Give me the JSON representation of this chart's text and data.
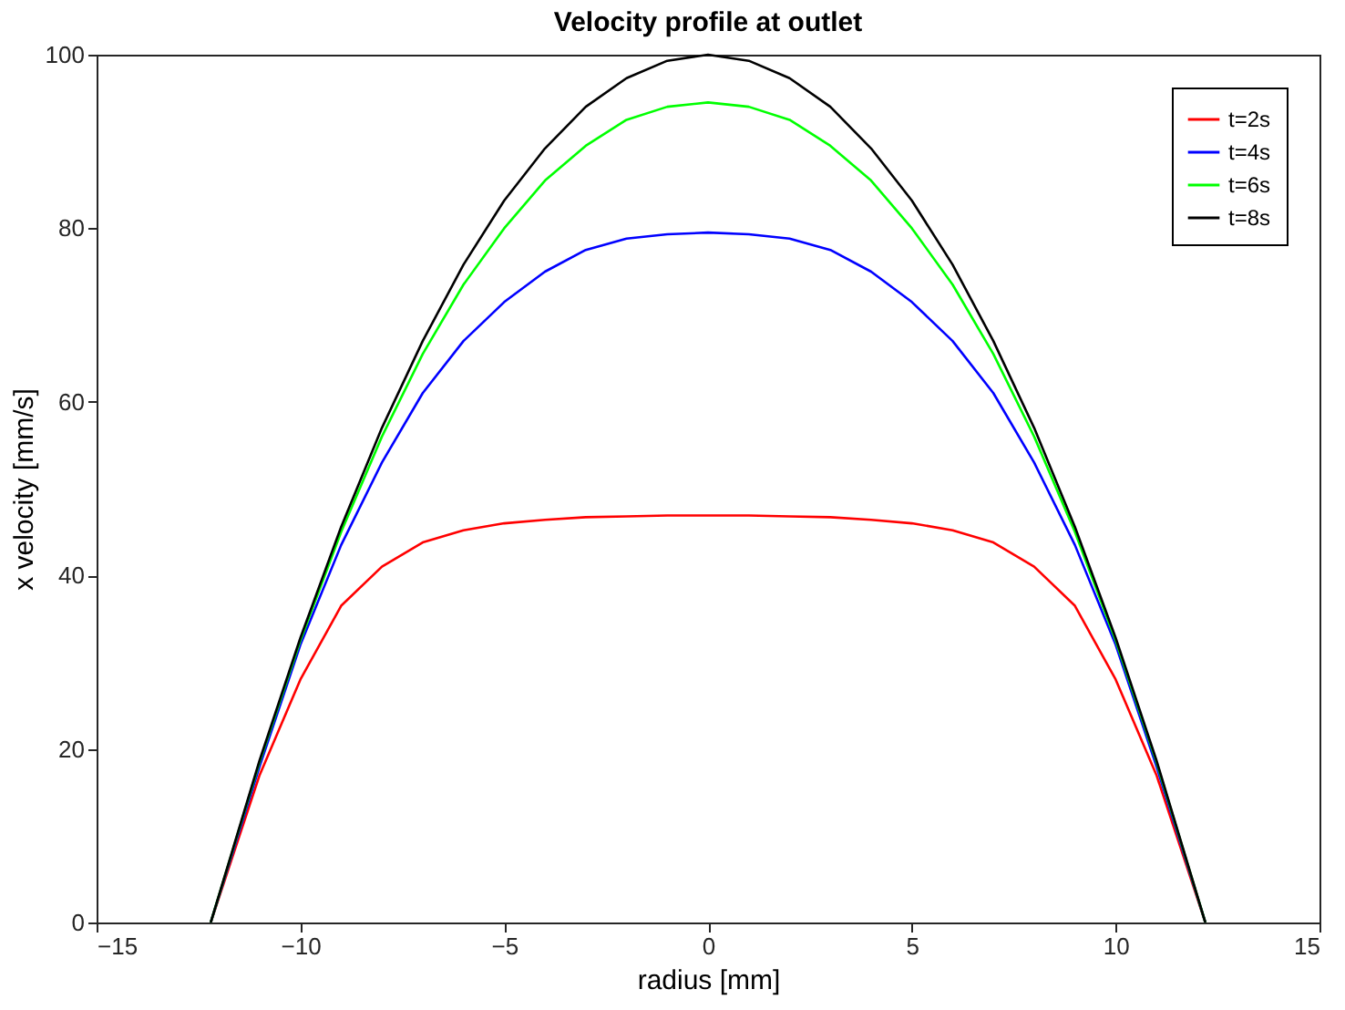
{
  "chart_data": {
    "type": "line",
    "title": "Velocity profile at outlet",
    "xlabel": "radius [mm]",
    "ylabel": "x velocity [mm/s]",
    "x": [
      -12.2,
      -11,
      -10,
      -9,
      -8,
      -7,
      -6,
      -5,
      -4,
      -3,
      -2,
      -1,
      0,
      1,
      2,
      3,
      4,
      5,
      6,
      7,
      8,
      9,
      10,
      11,
      12.2
    ],
    "series": [
      {
        "name": "t=2s",
        "color": "#ff0000",
        "values": [
          0,
          17,
          28,
          36.5,
          41,
          43.8,
          45.2,
          46,
          46.4,
          46.7,
          46.8,
          46.9,
          46.9,
          46.9,
          46.8,
          46.7,
          46.4,
          46,
          45.2,
          43.8,
          41,
          36.5,
          28,
          17,
          0
        ]
      },
      {
        "name": "t=4s",
        "color": "#0000ff",
        "values": [
          0,
          18,
          32,
          43.5,
          53,
          61,
          67,
          71.5,
          75,
          77.5,
          78.8,
          79.3,
          79.5,
          79.3,
          78.8,
          77.5,
          75,
          71.5,
          67,
          61,
          53,
          43.5,
          32,
          18,
          0
        ]
      },
      {
        "name": "t=6s",
        "color": "#00ff00",
        "values": [
          0,
          18.5,
          32.5,
          45,
          56,
          65.5,
          73.5,
          80,
          85.5,
          89.5,
          92.5,
          94,
          94.5,
          94,
          92.5,
          89.5,
          85.5,
          80,
          73.5,
          65.5,
          56,
          45,
          32.5,
          18.5,
          0
        ]
      },
      {
        "name": "t=8s",
        "color": "#000000",
        "values": [
          0,
          18.7,
          32.8,
          45.6,
          57,
          67,
          75.8,
          83.2,
          89.2,
          94,
          97.3,
          99.3,
          100,
          99.3,
          97.3,
          94,
          89.2,
          83.2,
          75.8,
          67,
          57,
          45.6,
          32.8,
          18.7,
          0
        ]
      }
    ],
    "xlim": [
      -15,
      15
    ],
    "xticks": [
      -15,
      -10,
      -5,
      0,
      5,
      10,
      15
    ],
    "ylim": [
      0,
      100
    ],
    "yticks": [
      0,
      20,
      40,
      60,
      80,
      100
    ],
    "grid": false,
    "legend": "top right"
  }
}
